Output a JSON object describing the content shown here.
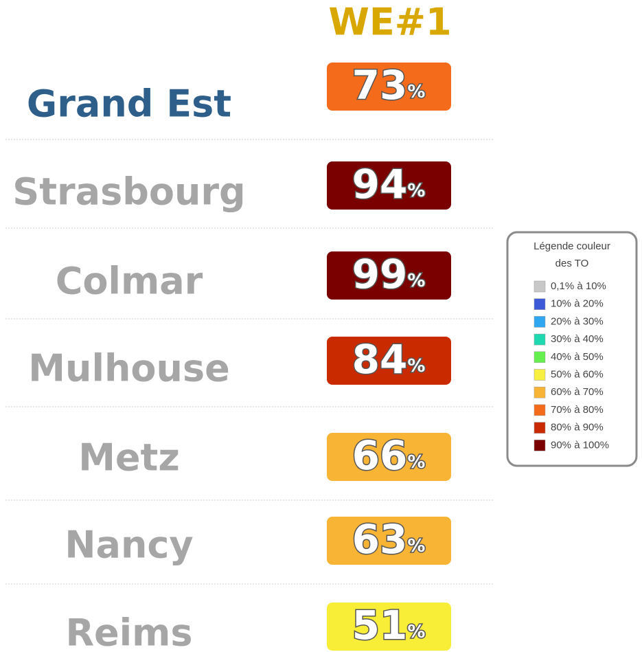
{
  "header": {
    "title": "WE#1"
  },
  "rows": [
    {
      "name": "Grand Est",
      "value": 73,
      "unit": "%",
      "color": "#f46b1c",
      "name_color": "#2e5f8a"
    },
    {
      "name": "Strasbourg",
      "value": 94,
      "unit": "%",
      "color": "#7a0000",
      "name_color": "#a6a6a6"
    },
    {
      "name": "Colmar",
      "value": 99,
      "unit": "%",
      "color": "#7a0000",
      "name_color": "#a6a6a6"
    },
    {
      "name": "Mulhouse",
      "value": 84,
      "unit": "%",
      "color": "#c92a00",
      "name_color": "#a6a6a6"
    },
    {
      "name": "Metz",
      "value": 66,
      "unit": "%",
      "color": "#f8b535",
      "name_color": "#a6a6a6"
    },
    {
      "name": "Nancy",
      "value": 63,
      "unit": "%",
      "color": "#f8b535",
      "name_color": "#a6a6a6"
    },
    {
      "name": "Reims",
      "value": 51,
      "unit": "%",
      "color": "#f8ee38",
      "name_color": "#a6a6a6"
    }
  ],
  "legend": {
    "title": [
      "Légende couleur",
      "des TO"
    ],
    "items": [
      {
        "label": "0,1% à 10%",
        "color": "#c8c8c8"
      },
      {
        "label": "10% à 20%",
        "color": "#3c5ad8"
      },
      {
        "label": "20% à 30%",
        "color": "#2fa6f0"
      },
      {
        "label": "30% à 40%",
        "color": "#1ed8b0"
      },
      {
        "label": "40% à 50%",
        "color": "#66f050"
      },
      {
        "label": "50% à 60%",
        "color": "#f8f040"
      },
      {
        "label": "60% à 70%",
        "color": "#f8b535"
      },
      {
        "label": "70% à 80%",
        "color": "#f46b1c"
      },
      {
        "label": "80% à 90%",
        "color": "#c92a00"
      },
      {
        "label": "90% à 100%",
        "color": "#7a0000"
      }
    ]
  }
}
